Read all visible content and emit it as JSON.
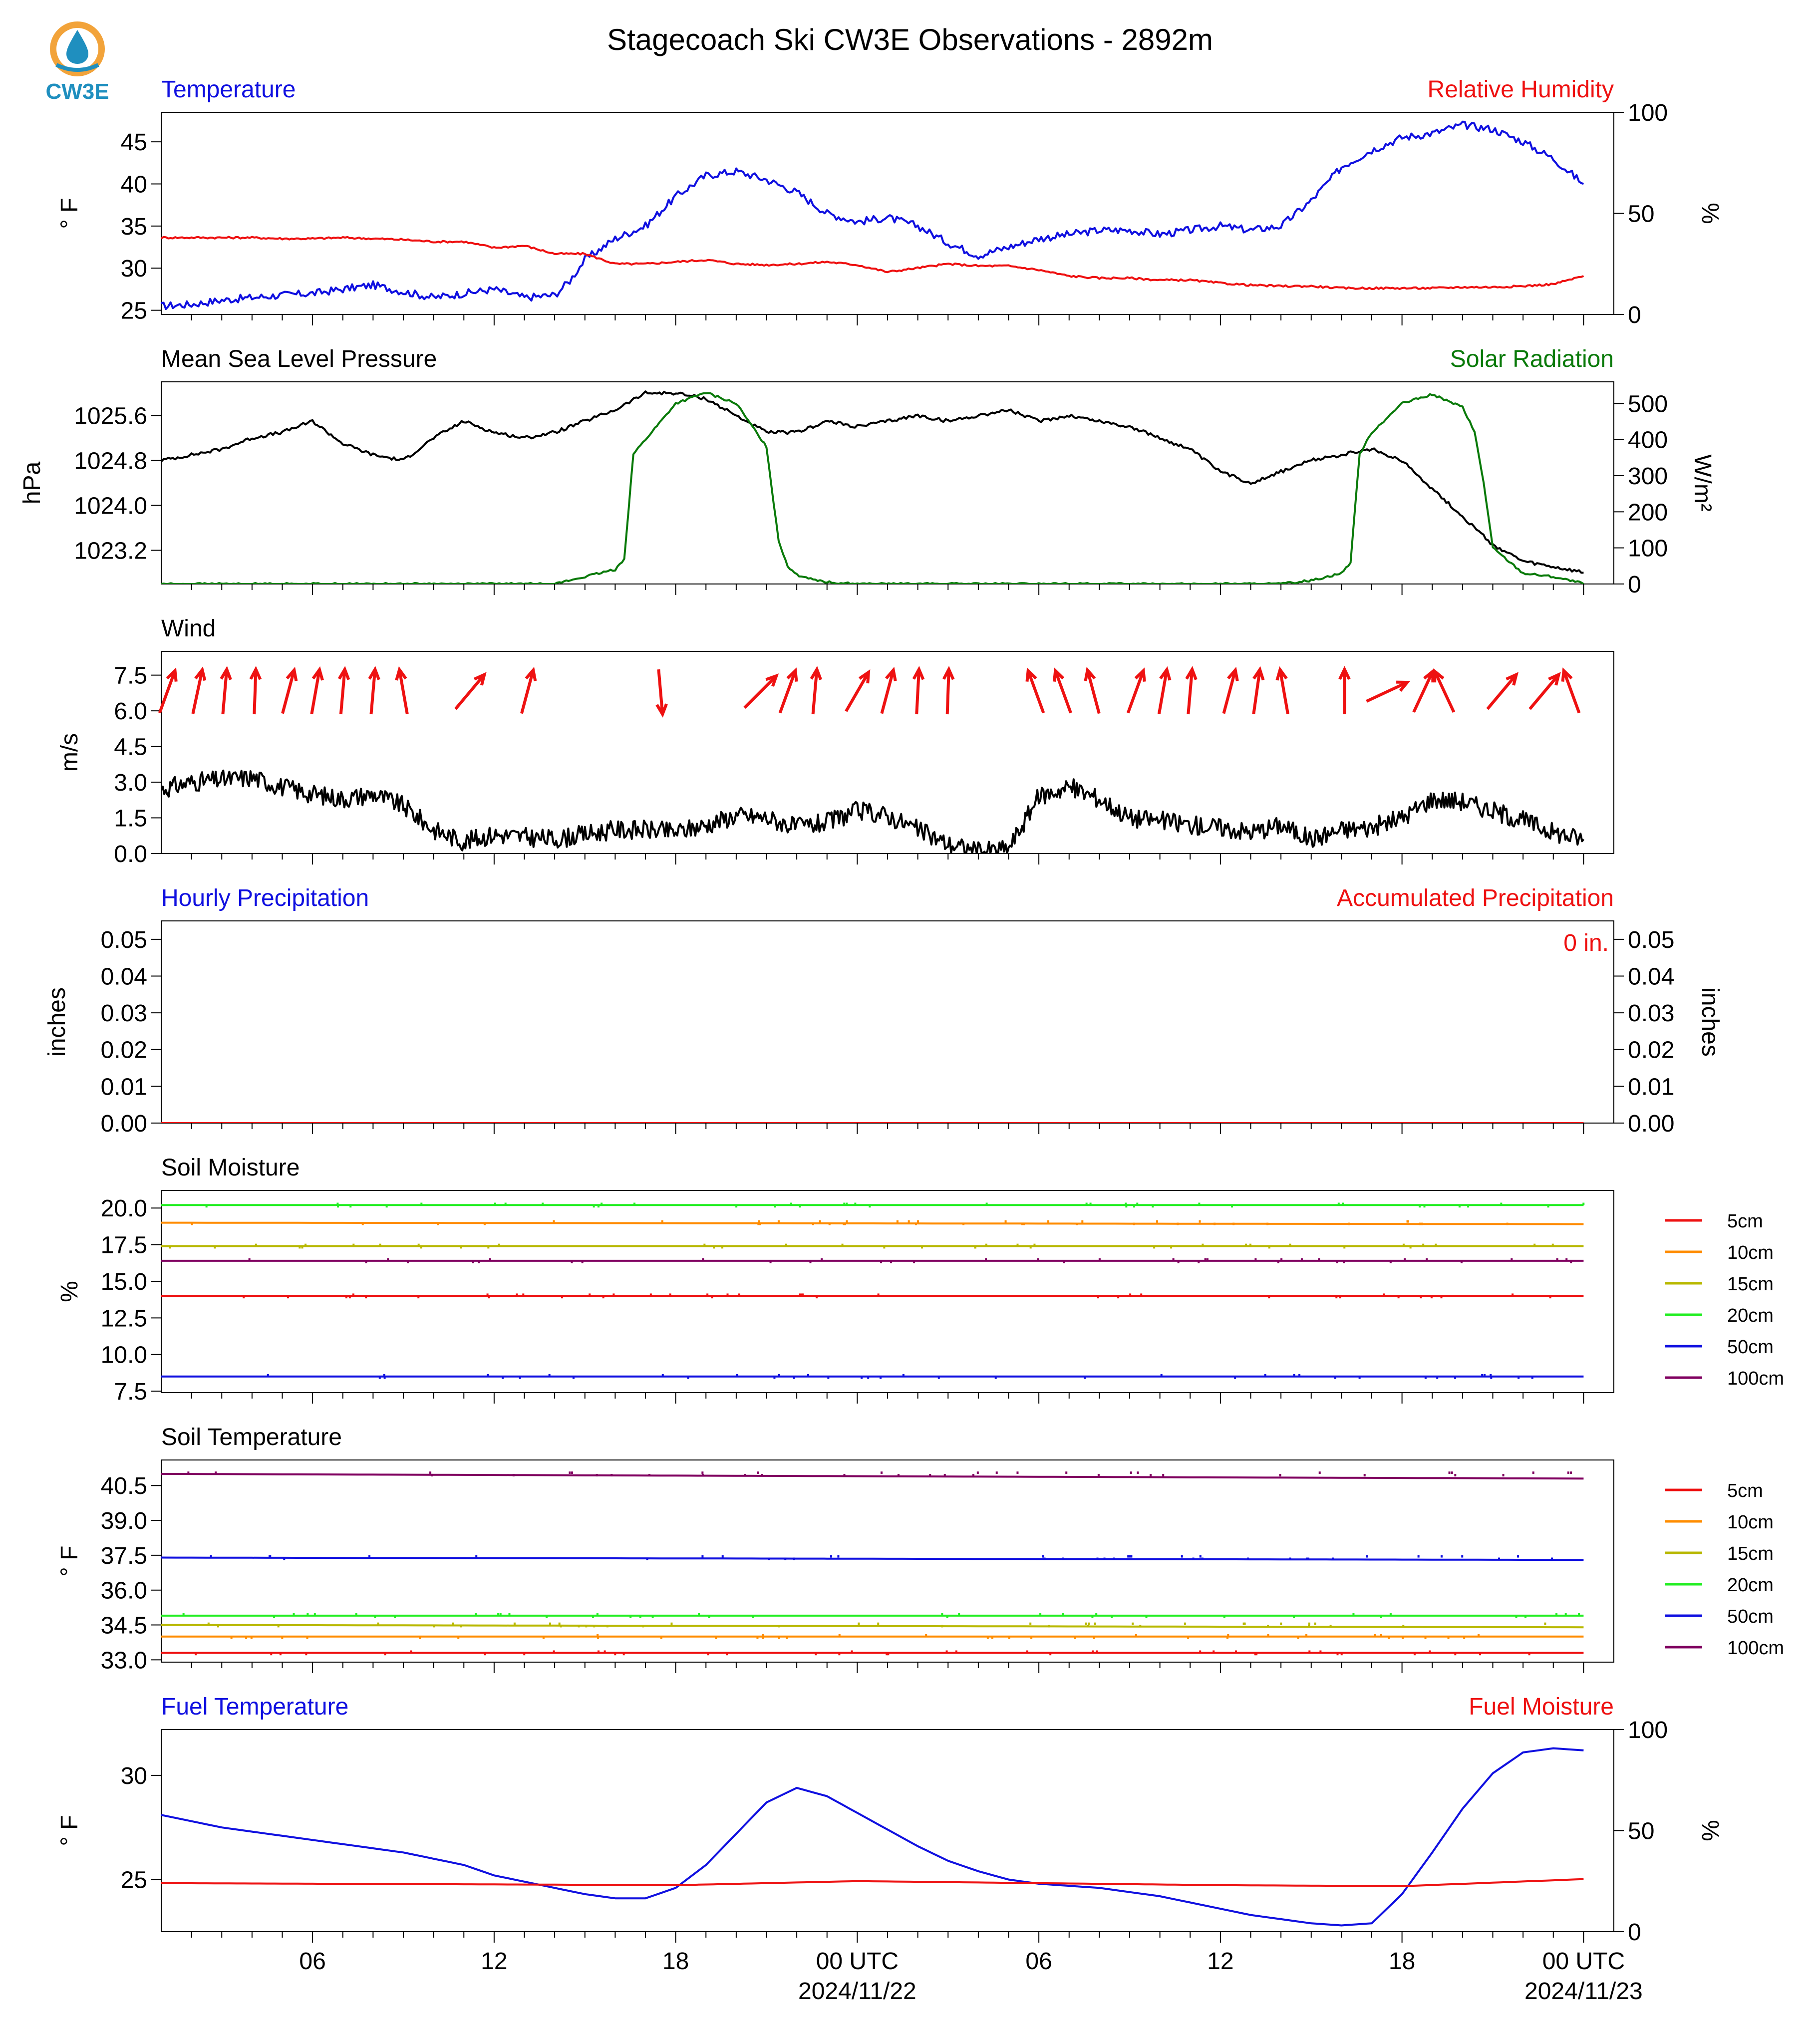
{
  "title": "Stagecoach Ski CW3E Observations - 2892m",
  "logo_text": "CW3E",
  "colors": {
    "blue": "#1010e0",
    "red": "#ee1111",
    "green": "#0a7a0a",
    "black": "#000000",
    "orange": "#ff8c00",
    "olive": "#b8b800",
    "lime": "#22ee22",
    "purple": "#800060",
    "logo_teal": "#1f8fbf",
    "logo_orange": "#f2a33a"
  },
  "x_axis": {
    "tick_labels": [
      "06",
      "12",
      "18",
      "00 UTC",
      "06",
      "12",
      "18",
      "00 UTC"
    ],
    "tick_hours": [
      6,
      12,
      18,
      24,
      30,
      36,
      42,
      48
    ],
    "date_labels": [
      "2024/11/22",
      "2024/11/23"
    ],
    "date_hours": [
      24,
      48
    ],
    "range_hours": [
      1,
      49
    ]
  },
  "legend_labels": [
    "5cm",
    "10cm",
    "15cm",
    "20cm",
    "50cm",
    "100cm"
  ],
  "chart_data": [
    {
      "type": "line",
      "left_title": "Temperature",
      "right_title": "Relative Humidity",
      "ylabel": "° F",
      "ylabel_right": "%",
      "yticks": [
        25,
        30,
        35,
        40,
        45
      ],
      "yticks_right": [
        0,
        50,
        100
      ],
      "ylim": [
        24.5,
        48.5
      ],
      "ylim_right": [
        0,
        100
      ],
      "series": [
        {
          "axis": "left",
          "color": "blue",
          "x": [
            1,
            2,
            3,
            4,
            5,
            6,
            7,
            8,
            9,
            10,
            11,
            12,
            13,
            14,
            14.5,
            15,
            16,
            17,
            18,
            19,
            20,
            21,
            22,
            23,
            24,
            25,
            26,
            27,
            28,
            29,
            30,
            31,
            32,
            33,
            34,
            35,
            36,
            37,
            38,
            39,
            40,
            41,
            42,
            43,
            44,
            45,
            46,
            47,
            48
          ],
          "y": [
            25.5,
            25.7,
            26.2,
            26.5,
            26.8,
            27,
            27.5,
            28,
            27.2,
            26.5,
            27,
            27.5,
            26.5,
            26.8,
            28.5,
            31,
            33.5,
            35,
            38.5,
            41,
            41.5,
            40.5,
            39,
            36.5,
            35.5,
            36,
            35,
            33,
            31.5,
            32.5,
            33.5,
            34,
            34.5,
            34.5,
            34,
            34.5,
            35,
            34.5,
            35,
            38,
            42,
            44,
            45.5,
            46,
            47,
            46.5,
            45,
            43,
            40
          ]
        },
        {
          "axis": "right",
          "color": "red",
          "x": [
            1,
            2,
            3,
            4,
            5,
            6,
            7,
            8,
            9,
            10,
            11,
            12,
            13,
            14,
            15,
            16,
            17,
            18,
            19,
            20,
            21,
            22,
            23,
            24,
            25,
            26,
            27,
            28,
            29,
            30,
            31,
            32,
            33,
            34,
            35,
            36,
            37,
            38,
            39,
            40,
            41,
            42,
            43,
            44,
            45,
            46,
            47,
            48
          ],
          "y": [
            38,
            38,
            38,
            38,
            37.5,
            37.5,
            38,
            37.5,
            37,
            36,
            36,
            33,
            34,
            30,
            30,
            25,
            25,
            26,
            27,
            25,
            24.5,
            25,
            26,
            24.5,
            21,
            23,
            25,
            24,
            24,
            22,
            19,
            18,
            18,
            17,
            17,
            15.5,
            14.5,
            14,
            14,
            13,
            13,
            13,
            13,
            13.5,
            13.5,
            14,
            15,
            19
          ]
        }
      ]
    },
    {
      "type": "line",
      "left_title": "Mean Sea Level Pressure",
      "right_title": "Solar Radiation",
      "ylabel": "hPa",
      "ylabel_right": "W/m²",
      "yticks": [
        "1023.2",
        "1024.0",
        "1024.8",
        "1025.6"
      ],
      "yticks_right": [
        0,
        100,
        200,
        300,
        400,
        500
      ],
      "ylim": [
        1022.6,
        1026.2
      ],
      "ylim_right": [
        0,
        560
      ],
      "series": [
        {
          "axis": "left",
          "color": "black",
          "x": [
            1,
            2,
            3,
            4,
            5,
            6,
            7,
            8,
            9,
            10,
            11,
            12,
            13,
            14,
            15,
            16,
            17,
            18,
            19,
            20,
            21,
            22,
            23,
            24,
            25,
            26,
            27,
            28,
            29,
            30,
            31,
            32,
            33,
            34,
            35,
            36,
            37,
            38,
            39,
            40,
            41,
            42,
            43,
            44,
            45,
            46,
            47,
            48
          ],
          "y": [
            1024.8,
            1024.9,
            1025.0,
            1025.2,
            1025.3,
            1025.5,
            1025.1,
            1024.9,
            1024.8,
            1025.2,
            1025.5,
            1025.3,
            1025.2,
            1025.3,
            1025.5,
            1025.7,
            1026.0,
            1026.0,
            1025.9,
            1025.6,
            1025.3,
            1025.3,
            1025.5,
            1025.4,
            1025.5,
            1025.6,
            1025.5,
            1025.6,
            1025.7,
            1025.5,
            1025.6,
            1025.5,
            1025.4,
            1025.2,
            1025.0,
            1024.6,
            1024.4,
            1024.6,
            1024.8,
            1024.9,
            1025.0,
            1024.8,
            1024.3,
            1023.8,
            1023.3,
            1023.0,
            1022.9,
            1022.8
          ]
        },
        {
          "axis": "right",
          "color": "green",
          "x": [
            1,
            14,
            15,
            16,
            16.3,
            16.6,
            17,
            18,
            19,
            20,
            21,
            21.4,
            21.7,
            22,
            23,
            24,
            38,
            39,
            40,
            40.3,
            40.6,
            41,
            42,
            43,
            44,
            44.4,
            44.7,
            45,
            46,
            47,
            47.8,
            48
          ],
          "y": [
            0,
            0,
            20,
            40,
            70,
            360,
            400,
            500,
            530,
            500,
            380,
            120,
            50,
            25,
            5,
            0,
            0,
            10,
            30,
            60,
            360,
            420,
            500,
            525,
            490,
            420,
            280,
            100,
            30,
            20,
            5,
            0
          ]
        }
      ]
    },
    {
      "type": "line",
      "left_title": "Wind",
      "ylabel": "m/s",
      "yticks": [
        "0.0",
        "1.5",
        "3.0",
        "4.5",
        "6.0",
        "7.5"
      ],
      "ylim": [
        0,
        8.5
      ],
      "series": [
        {
          "axis": "left",
          "color": "black",
          "x": [
            1,
            2,
            3,
            4,
            5,
            6,
            7,
            8,
            9,
            10,
            11,
            12,
            13,
            14,
            15,
            16,
            17,
            18,
            19,
            20,
            21,
            22,
            23,
            24,
            25,
            26,
            27,
            28,
            29,
            30,
            31,
            32,
            33,
            34,
            35,
            36,
            37,
            38,
            39,
            40,
            41,
            42,
            43,
            44,
            45,
            46,
            47,
            48
          ],
          "y": [
            2.7,
            3.0,
            3.1,
            3.2,
            2.8,
            2.5,
            2.3,
            2.5,
            2.0,
            1.0,
            0.5,
            0.8,
            0.7,
            0.6,
            0.8,
            1.0,
            1.0,
            0.9,
            1.2,
            1.6,
            1.5,
            1.1,
            1.3,
            1.8,
            1.6,
            1.0,
            0.4,
            0.1,
            0.2,
            2.4,
            2.8,
            2.3,
            1.5,
            1.4,
            1.2,
            1.1,
            0.9,
            1.2,
            0.6,
            1.0,
            1.1,
            1.5,
            2.3,
            2.2,
            1.8,
            1.4,
            0.9,
            0.6
          ]
        }
      ],
      "wind_barbs": [
        {
          "x": 1.2,
          "dir_deg": 20
        },
        {
          "x": 2.2,
          "dir_deg": 12
        },
        {
          "x": 3.1,
          "dir_deg": 5
        },
        {
          "x": 4.1,
          "dir_deg": 2
        },
        {
          "x": 5.2,
          "dir_deg": 15
        },
        {
          "x": 6.1,
          "dir_deg": 10
        },
        {
          "x": 7.0,
          "dir_deg": 5
        },
        {
          "x": 8.0,
          "dir_deg": 5
        },
        {
          "x": 9.0,
          "dir_deg": 350
        },
        {
          "x": 11.2,
          "dir_deg": 40
        },
        {
          "x": 13.1,
          "dir_deg": 15
        },
        {
          "x": 17.5,
          "dir_deg": 175
        },
        {
          "x": 20.8,
          "dir_deg": 45
        },
        {
          "x": 21.7,
          "dir_deg": 20
        },
        {
          "x": 22.6,
          "dir_deg": 5
        },
        {
          "x": 24.0,
          "dir_deg": 30
        },
        {
          "x": 25.0,
          "dir_deg": 15
        },
        {
          "x": 26.0,
          "dir_deg": 3
        },
        {
          "x": 27.0,
          "dir_deg": 2
        },
        {
          "x": 29.9,
          "dir_deg": 340
        },
        {
          "x": 30.8,
          "dir_deg": 340
        },
        {
          "x": 31.8,
          "dir_deg": 345
        },
        {
          "x": 33.2,
          "dir_deg": 20
        },
        {
          "x": 34.1,
          "dir_deg": 10
        },
        {
          "x": 35.0,
          "dir_deg": 5
        },
        {
          "x": 36.3,
          "dir_deg": 15
        },
        {
          "x": 37.2,
          "dir_deg": 8
        },
        {
          "x": 38.1,
          "dir_deg": 350
        },
        {
          "x": 40.1,
          "dir_deg": 0
        },
        {
          "x": 41.5,
          "dir_deg": 65
        },
        {
          "x": 42.7,
          "dir_deg": 25
        },
        {
          "x": 43.4,
          "dir_deg": 335
        },
        {
          "x": 45.3,
          "dir_deg": 40
        },
        {
          "x": 46.7,
          "dir_deg": 40
        },
        {
          "x": 47.6,
          "dir_deg": 340
        }
      ]
    },
    {
      "type": "line",
      "left_title": "Hourly Precipitation",
      "right_title": "Accumulated Precipitation",
      "annotation": "0 in.",
      "ylabel": "inches",
      "ylabel_right": "inches",
      "yticks": [
        "0.00",
        "0.01",
        "0.02",
        "0.03",
        "0.04",
        "0.05"
      ],
      "yticks_right": [
        "0.00",
        "0.01",
        "0.02",
        "0.03",
        "0.04",
        "0.05"
      ],
      "ylim": [
        0,
        0.055
      ],
      "series": [
        {
          "axis": "left",
          "color": "blue",
          "x": [
            1,
            48
          ],
          "y": [
            0,
            0
          ]
        },
        {
          "axis": "left",
          "color": "red",
          "x": [
            1,
            48
          ],
          "y": [
            0,
            0
          ]
        }
      ]
    },
    {
      "type": "line",
      "left_title": "Soil Moisture",
      "ylabel": "%",
      "yticks": [
        "7.5",
        "10.0",
        "12.5",
        "15.0",
        "17.5",
        "20.0"
      ],
      "ylim": [
        7.4,
        21.2
      ],
      "series": [
        {
          "name": "5cm",
          "color": "red",
          "x": [
            1,
            48
          ],
          "y": [
            14.0,
            14.0
          ]
        },
        {
          "name": "10cm",
          "color": "orange",
          "x": [
            1,
            48
          ],
          "y": [
            19.0,
            18.9
          ]
        },
        {
          "name": "15cm",
          "color": "olive",
          "x": [
            1,
            48
          ],
          "y": [
            17.4,
            17.4
          ]
        },
        {
          "name": "20cm",
          "color": "lime",
          "x": [
            1,
            48
          ],
          "y": [
            20.2,
            20.2
          ]
        },
        {
          "name": "50cm",
          "color": "blue",
          "x": [
            1,
            48
          ],
          "y": [
            8.5,
            8.5
          ]
        },
        {
          "name": "100cm",
          "color": "purple",
          "x": [
            1,
            48
          ],
          "y": [
            16.4,
            16.4
          ]
        }
      ]
    },
    {
      "type": "line",
      "left_title": "Soil Temperature",
      "ylabel": "° F",
      "yticks": [
        "33.0",
        "34.5",
        "36.0",
        "37.5",
        "39.0",
        "40.5"
      ],
      "ylim": [
        32.9,
        41.6
      ],
      "series": [
        {
          "name": "5cm",
          "color": "red",
          "x": [
            1,
            48
          ],
          "y": [
            33.3,
            33.3
          ]
        },
        {
          "name": "10cm",
          "color": "orange",
          "x": [
            1,
            48
          ],
          "y": [
            34.0,
            34.0
          ]
        },
        {
          "name": "15cm",
          "color": "olive",
          "x": [
            1,
            48
          ],
          "y": [
            34.5,
            34.4
          ]
        },
        {
          "name": "20cm",
          "color": "lime",
          "x": [
            1,
            48
          ],
          "y": [
            34.9,
            34.9
          ]
        },
        {
          "name": "50cm",
          "color": "blue",
          "x": [
            1,
            48
          ],
          "y": [
            37.4,
            37.3
          ]
        },
        {
          "name": "100cm",
          "color": "purple",
          "x": [
            1,
            48
          ],
          "y": [
            41.0,
            40.8
          ]
        }
      ]
    },
    {
      "type": "line",
      "left_title": "Fuel Temperature",
      "right_title": "Fuel Moisture",
      "ylabel": "° F",
      "ylabel_right": "%",
      "yticks": [
        25,
        30
      ],
      "yticks_right": [
        0,
        50,
        100
      ],
      "ylim": [
        22.5,
        32.2
      ],
      "ylim_right": [
        0,
        100
      ],
      "series": [
        {
          "axis": "left",
          "color": "blue",
          "x": [
            1,
            2,
            3,
            4,
            5,
            6,
            7,
            8,
            9,
            10,
            11,
            12,
            13,
            14,
            15,
            16,
            17,
            18,
            19,
            20,
            21,
            22,
            23,
            24,
            25,
            26,
            27,
            28,
            29,
            30,
            31,
            32,
            33,
            34,
            35,
            36,
            37,
            38,
            39,
            40,
            41,
            42,
            43,
            44,
            45,
            46,
            47,
            48
          ],
          "y": [
            28.1,
            27.8,
            27.5,
            27.3,
            27.1,
            26.9,
            26.7,
            26.5,
            26.3,
            26.0,
            25.7,
            25.2,
            24.9,
            24.6,
            24.3,
            24.1,
            24.1,
            24.6,
            25.7,
            27.2,
            28.7,
            29.4,
            29.0,
            28.2,
            27.4,
            26.6,
            25.9,
            25.4,
            25.0,
            24.8,
            24.7,
            24.6,
            24.4,
            24.2,
            23.9,
            23.6,
            23.3,
            23.1,
            22.9,
            22.8,
            22.9,
            24.3,
            26.3,
            28.4,
            30.1,
            31.1,
            31.3,
            31.2
          ]
        },
        {
          "axis": "right",
          "color": "red",
          "x": [
            1,
            10,
            18,
            24,
            30,
            36,
            42,
            48
          ],
          "y": [
            24,
            23.5,
            23,
            25,
            24,
            23,
            22.5,
            26
          ]
        }
      ]
    }
  ]
}
